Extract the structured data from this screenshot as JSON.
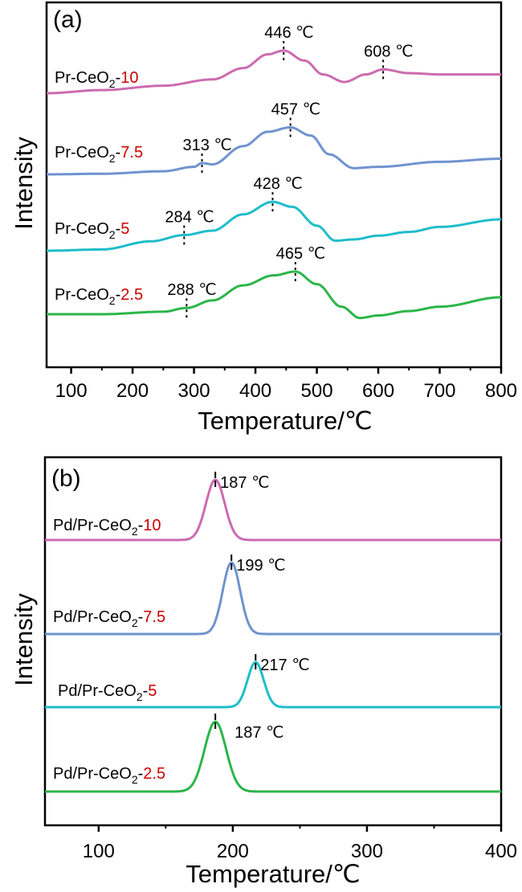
{
  "chart_data": [
    {
      "type": "line",
      "panel_label": "(a)",
      "xlabel": "Temperature/℃",
      "ylabel": "Intensity",
      "xlim": [
        60,
        800
      ],
      "xticks": [
        100,
        200,
        300,
        400,
        500,
        600,
        700,
        800
      ],
      "xtick_labels": [
        "100",
        "200",
        "300",
        "400",
        "500",
        "600",
        "700",
        "800"
      ],
      "yticks_shown": false,
      "grid": false,
      "legend": "inline labels at left of each curve",
      "series": [
        {
          "name": "Pr-CeO2-10",
          "label_prefix": "Pr-CeO",
          "label_sub": "2",
          "label_suffix": "-",
          "label_accent": "10",
          "color": "#cc6bb0",
          "offset": 3.0,
          "x": [
            60,
            150,
            250,
            330,
            380,
            420,
            446,
            480,
            510,
            545,
            580,
            608,
            650,
            700,
            800
          ],
          "y": [
            0.0,
            0.05,
            0.12,
            0.22,
            0.4,
            0.62,
            0.68,
            0.52,
            0.3,
            0.18,
            0.3,
            0.38,
            0.32,
            0.3,
            0.3
          ],
          "peaks": [
            {
              "temperature": 446,
              "label": "446 ℃"
            },
            {
              "temperature": 608,
              "label": "608 ℃"
            }
          ]
        },
        {
          "name": "Pr-CeO2-7.5",
          "label_prefix": "Pr-CeO",
          "label_sub": "2",
          "label_suffix": "-",
          "label_accent": "7.5",
          "color": "#6f93cf",
          "offset": 2.0,
          "x": [
            60,
            150,
            250,
            300,
            313,
            330,
            380,
            420,
            457,
            490,
            520,
            560,
            600,
            700,
            800
          ],
          "y": [
            0.0,
            0.01,
            0.05,
            0.12,
            0.18,
            0.16,
            0.45,
            0.68,
            0.75,
            0.62,
            0.32,
            0.1,
            0.12,
            0.2,
            0.25
          ],
          "peaks": [
            {
              "temperature": 313,
              "label": "313 ℃"
            },
            {
              "temperature": 457,
              "label": "457 ℃"
            }
          ]
        },
        {
          "name": "Pr-CeO2-5",
          "label_prefix": "Pr-CeO",
          "label_sub": "2",
          "label_suffix": "-",
          "label_accent": "5",
          "color": "#1fbdca",
          "offset": 1.0,
          "x": [
            60,
            150,
            230,
            284,
            330,
            380,
            428,
            460,
            500,
            530,
            560,
            600,
            650,
            700,
            800
          ],
          "y": [
            0.0,
            0.02,
            0.15,
            0.25,
            0.32,
            0.58,
            0.78,
            0.7,
            0.4,
            0.16,
            0.18,
            0.24,
            0.3,
            0.38,
            0.5
          ],
          "peaks": [
            {
              "temperature": 284,
              "label": "284 ℃"
            },
            {
              "temperature": 428,
              "label": "428 ℃"
            }
          ]
        },
        {
          "name": "Pr-CeO2-2.5",
          "label_prefix": "Pr-CeO",
          "label_sub": "2",
          "label_suffix": "-",
          "label_accent": "2.5",
          "color": "#2cb54a",
          "offset": 0.0,
          "x": [
            60,
            150,
            250,
            288,
            330,
            380,
            430,
            465,
            500,
            540,
            570,
            600,
            650,
            700,
            800
          ],
          "y": [
            0.0,
            0.0,
            0.04,
            0.1,
            0.22,
            0.46,
            0.62,
            0.68,
            0.48,
            0.12,
            -0.06,
            -0.02,
            0.05,
            0.12,
            0.27
          ],
          "peaks": [
            {
              "temperature": 288,
              "label": "288 ℃"
            },
            {
              "temperature": 465,
              "label": "465 ℃"
            }
          ]
        }
      ]
    },
    {
      "type": "line",
      "panel_label": "(b)",
      "xlabel": "Temperature/℃",
      "ylabel": "Intensity",
      "xlim": [
        60,
        400
      ],
      "xticks": [
        100,
        200,
        300,
        400
      ],
      "xtick_labels": [
        "100",
        "200",
        "300",
        "400"
      ],
      "minor_xticks": [
        150,
        250,
        350
      ],
      "yticks_shown": false,
      "grid": false,
      "legend": "inline labels at left of each curve",
      "series": [
        {
          "name": "Pd/Pr-CeO2-10",
          "label_prefix": "Pd/Pr-CeO",
          "label_sub": "2",
          "label_suffix": "-",
          "label_accent": "10",
          "color": "#cc6bb0",
          "offset": 3.0,
          "baseline": 0.0,
          "peak_center": 187,
          "peak_height": 0.75,
          "peak_width": 7,
          "peaks": [
            {
              "temperature": 187,
              "label": "187 ℃"
            }
          ]
        },
        {
          "name": "Pd/Pr-CeO2-7.5",
          "label_prefix": "Pd/Pr-CeO",
          "label_sub": "2",
          "label_suffix": "-",
          "label_accent": "7.5",
          "color": "#6f93cf",
          "offset": 2.0,
          "baseline": 0.0,
          "peak_center": 199,
          "peak_height": 0.89,
          "peak_width": 6.5,
          "peaks": [
            {
              "temperature": 199,
              "label": "199 ℃"
            }
          ]
        },
        {
          "name": "Pd/Pr-CeO2-5",
          "label_prefix": "Pd/Pr-CeO",
          "label_sub": "2",
          "label_suffix": "-",
          "label_accent": "5",
          "color": "#1fbdca",
          "offset": 1.0,
          "baseline": 0.0,
          "peak_center": 217,
          "peak_height": 0.56,
          "peak_width": 6,
          "peaks": [
            {
              "temperature": 217,
              "label": "217 ℃"
            }
          ]
        },
        {
          "name": "Pd/Pr-CeO2-2.5",
          "label_prefix": "Pd/Pr-CeO",
          "label_sub": "2",
          "label_suffix": "-",
          "label_accent": "2.5",
          "color": "#2cb54a",
          "offset": 0.0,
          "baseline": 0.0,
          "peak_center": 187,
          "peak_height": 0.87,
          "peak_width": 8,
          "peaks": [
            {
              "temperature": 187,
              "label": "187 ℃"
            }
          ]
        }
      ]
    }
  ]
}
